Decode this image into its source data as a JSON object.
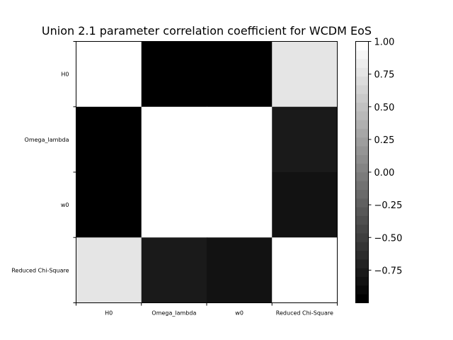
{
  "chart_data": {
    "type": "heatmap",
    "title": "Union 2.1 parameter correlation coefficient for WCDM EoS",
    "labels": [
      "H0",
      "Omega_lambda",
      "w0",
      "Reduced Chi-Square"
    ],
    "matrix": [
      [
        1.0,
        -0.98,
        -0.98,
        0.76
      ],
      [
        -0.98,
        1.0,
        1.0,
        -0.78
      ],
      [
        -0.98,
        1.0,
        1.0,
        -0.82
      ],
      [
        0.76,
        -0.78,
        -0.82,
        1.0
      ]
    ],
    "colormap": "gray",
    "colorbar": {
      "range": [
        -1.0,
        1.0
      ],
      "tick_values": [
        1.0,
        0.75,
        0.5,
        0.25,
        0.0,
        -0.25,
        -0.5,
        -0.75
      ],
      "tick_labels": [
        "1.00",
        "0.75",
        "0.50",
        "0.25",
        "0.00",
        "−0.25",
        "−0.50",
        "−0.75"
      ],
      "levels": 30
    },
    "grid": false
  }
}
